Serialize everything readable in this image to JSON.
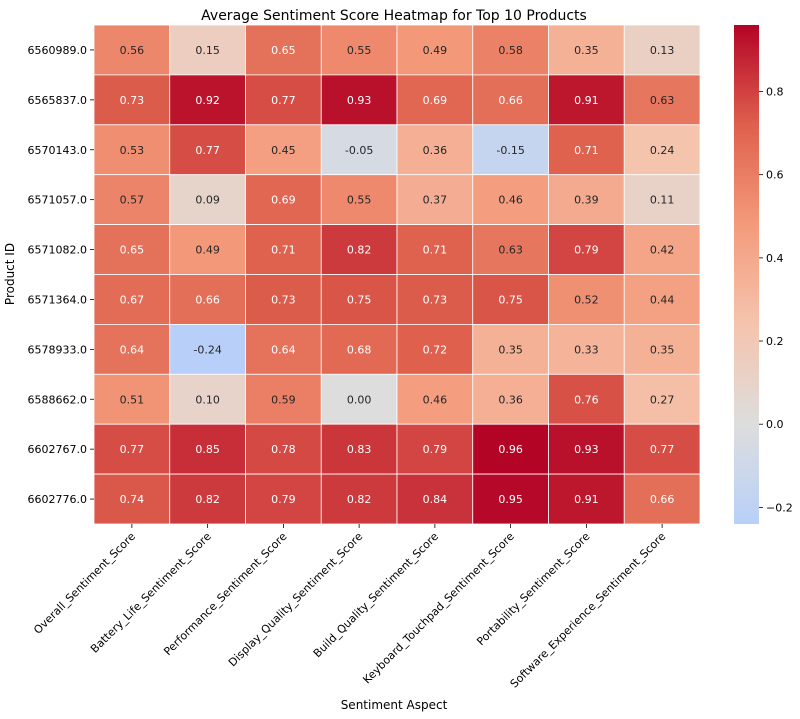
{
  "chart_data": {
    "type": "heatmap",
    "title": "Average Sentiment Score Heatmap for Top 10 Products",
    "xlabel": "Sentiment Aspect",
    "ylabel": "Product ID",
    "x_categories": [
      "Overall_Sentiment_Score",
      "Battery_Life_Sentiment_Score",
      "Performance_Sentiment_Score",
      "Display_Quality_Sentiment_Score",
      "Build_Quality_Sentiment_Score",
      "Keyboard_Touchpad_Sentiment_Score",
      "Portability_Sentiment_Score",
      "Software_Experience_Sentiment_Score"
    ],
    "y_categories": [
      "6560989.0",
      "6565837.0",
      "6570143.0",
      "6571057.0",
      "6571082.0",
      "6571364.0",
      "6578933.0",
      "6588662.0",
      "6602767.0",
      "6602776.0"
    ],
    "values": [
      [
        0.56,
        0.15,
        0.65,
        0.55,
        0.49,
        0.58,
        0.35,
        0.13
      ],
      [
        0.73,
        0.92,
        0.77,
        0.93,
        0.69,
        0.66,
        0.91,
        0.63
      ],
      [
        0.53,
        0.77,
        0.45,
        -0.05,
        0.36,
        -0.15,
        0.71,
        0.24
      ],
      [
        0.57,
        0.09,
        0.69,
        0.55,
        0.37,
        0.46,
        0.39,
        0.11
      ],
      [
        0.65,
        0.49,
        0.71,
        0.82,
        0.71,
        0.63,
        0.79,
        0.42
      ],
      [
        0.67,
        0.66,
        0.73,
        0.75,
        0.73,
        0.75,
        0.52,
        0.44
      ],
      [
        0.64,
        -0.24,
        0.64,
        0.68,
        0.72,
        0.35,
        0.33,
        0.35
      ],
      [
        0.51,
        0.1,
        0.59,
        0.0,
        0.46,
        0.36,
        0.76,
        0.27
      ],
      [
        0.77,
        0.85,
        0.78,
        0.83,
        0.79,
        0.96,
        0.93,
        0.77
      ],
      [
        0.74,
        0.82,
        0.79,
        0.82,
        0.84,
        0.95,
        0.91,
        0.66
      ]
    ],
    "colormap": "coolwarm",
    "center": 0.0,
    "vmin": -0.24,
    "vmax": 0.96,
    "colorbar_ticks": [
      0.8,
      0.6,
      0.4,
      0.2,
      0.0,
      -0.2
    ],
    "colorbar_tick_labels": [
      "0.8",
      "0.6",
      "0.4",
      "0.2",
      "0.0",
      "−0.2"
    ],
    "annotation_format": "0.00"
  }
}
